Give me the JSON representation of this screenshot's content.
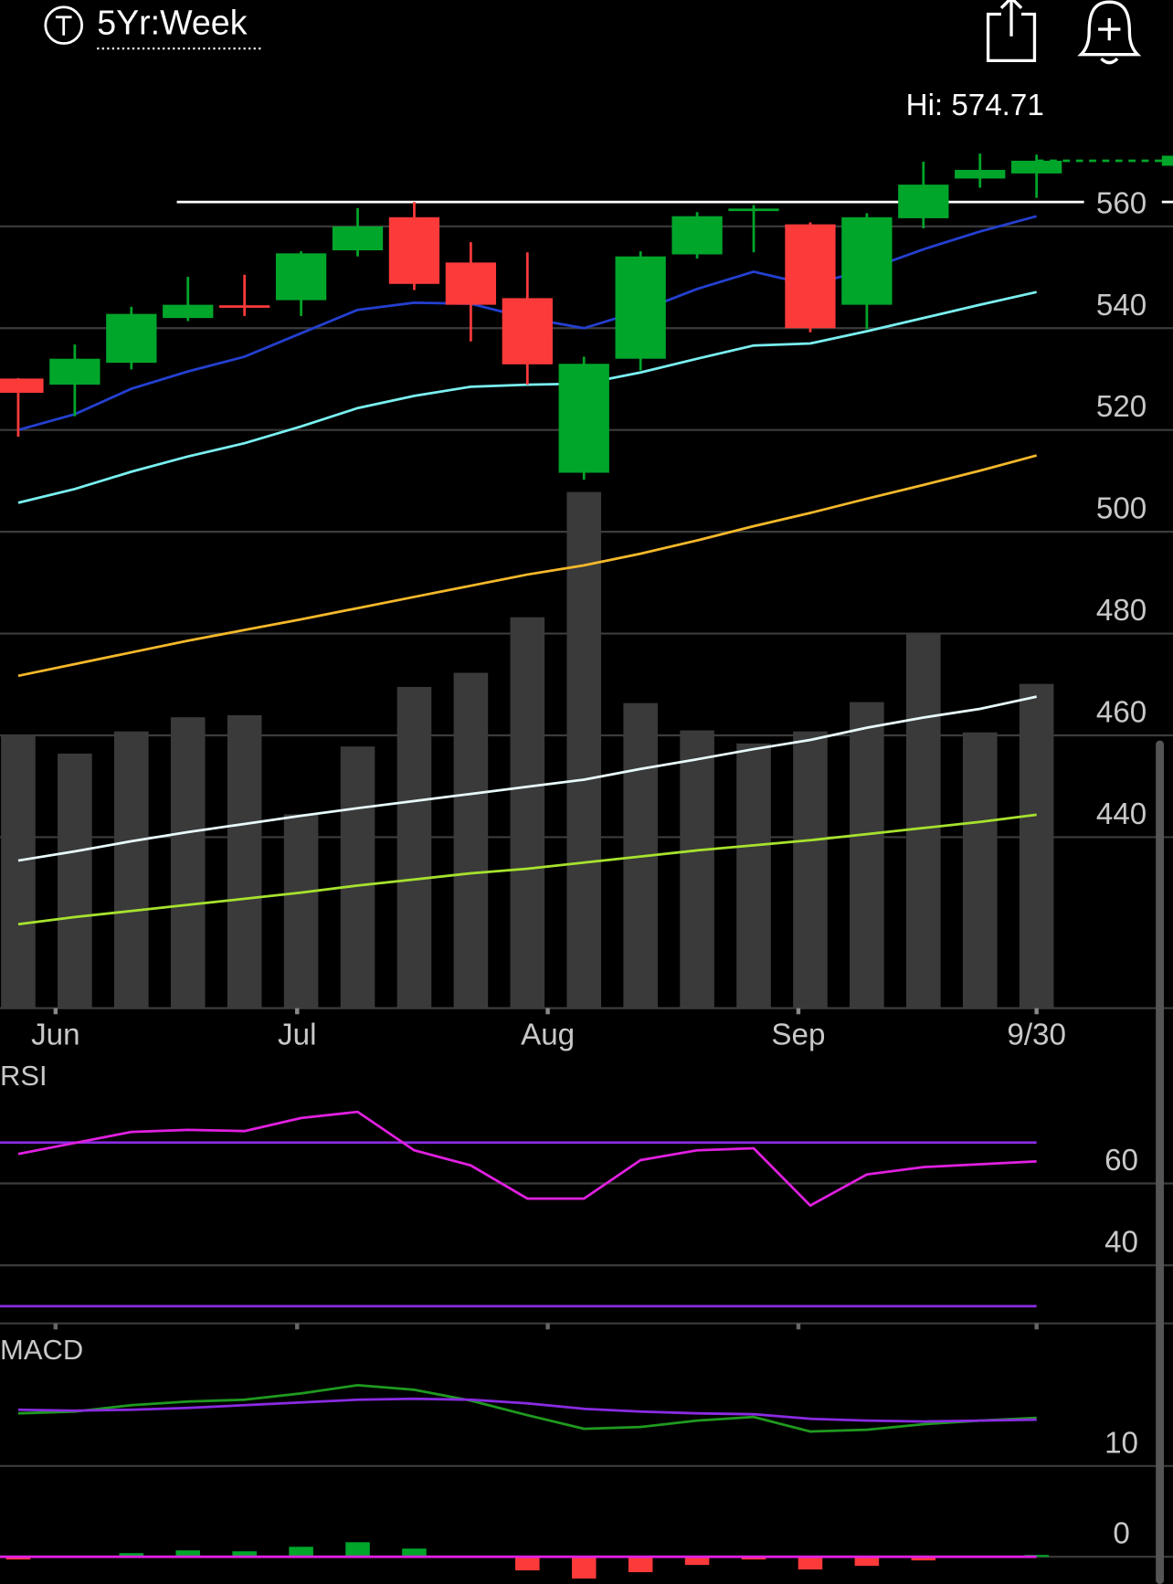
{
  "header": {
    "label": "5Yr:Week"
  },
  "chart_data": [
    {
      "type": "candlestick",
      "annotation": "Hi: 574.71",
      "categories": [
        null,
        null,
        null,
        null,
        null,
        null,
        null,
        null,
        null,
        null,
        null,
        null,
        null,
        null,
        null,
        null,
        null,
        null,
        null
      ],
      "open": [
        530.1,
        528.9,
        533.2,
        542.0,
        544.5,
        545.5,
        555.3,
        561.8,
        552.9,
        545.9,
        511.6,
        534.0,
        554.5,
        563.2,
        560.4,
        544.6,
        561.6,
        569.4,
        570.4
      ],
      "high": [
        530.2,
        536.8,
        544.2,
        550.1,
        550.5,
        555.1,
        563.6,
        564.8,
        556.9,
        554.9,
        534.4,
        555.1,
        562.8,
        564.2,
        560.8,
        562.6,
        572.7,
        574.3,
        574.1
      ],
      "low": [
        518.7,
        522.7,
        531.9,
        541.4,
        542.4,
        542.4,
        554.1,
        547.5,
        537.4,
        528.9,
        510.2,
        531.7,
        553.7,
        554.9,
        539.2,
        539.8,
        559.6,
        567.6,
        565.6
      ],
      "close": [
        527.3,
        534.0,
        542.8,
        544.6,
        544.3,
        554.7,
        560.0,
        548.7,
        544.6,
        532.9,
        533.0,
        554.1,
        562.0,
        563.5,
        540.0,
        561.8,
        568.2,
        571.1,
        572.9
      ],
      "up_color": "#00a62a",
      "down_color": "#fc3a3a",
      "series": [
        {
          "color": "#2440d0",
          "values": [
            520.0,
            523.1,
            528.1,
            531.5,
            534.4,
            539.0,
            543.6,
            545.0,
            544.8,
            542.0,
            540.0,
            543.4,
            547.7,
            551.1,
            548.5,
            551.5,
            555.5,
            559.0,
            562.0
          ]
        },
        {
          "color": "#7af0f0",
          "values": [
            505.7,
            508.4,
            511.8,
            514.8,
            517.4,
            520.7,
            524.3,
            526.7,
            528.5,
            528.9,
            529.1,
            531.3,
            534.0,
            536.6,
            537.0,
            539.4,
            542.0,
            544.6,
            547.1
          ]
        },
        {
          "color": "#f5b82a",
          "values": [
            471.7,
            474.0,
            476.3,
            478.6,
            480.7,
            482.8,
            485.0,
            487.2,
            489.4,
            491.6,
            493.4,
            495.7,
            498.3,
            501.1,
            503.7,
            506.5,
            509.2,
            512.0,
            515.0
          ]
        },
        {
          "color": "#e8fafa",
          "values": [
            435.4,
            437.2,
            439.2,
            441.0,
            442.6,
            444.2,
            445.7,
            447.1,
            448.5,
            449.9,
            451.3,
            453.4,
            455.3,
            457.3,
            459.1,
            461.5,
            463.5,
            465.2,
            467.6
          ]
        },
        {
          "color": "#a6e22e",
          "values": [
            422.9,
            424.3,
            425.5,
            426.7,
            427.9,
            429.1,
            430.5,
            431.7,
            432.9,
            433.8,
            435.0,
            436.2,
            437.4,
            438.4,
            439.4,
            440.6,
            441.8,
            443.0,
            444.4
          ]
        }
      ],
      "resistance": 564.8,
      "volume": {
        "color": "#3a3a3a",
        "lim": [
          0,
          918
        ],
        "values": [
          271,
          252,
          274,
          288,
          290,
          192,
          259,
          318,
          332,
          387,
          511,
          302,
          275,
          262,
          274,
          303,
          371,
          273,
          321
        ]
      },
      "ylim": [
        406.4,
        588.6
      ],
      "yticks": [
        440,
        460,
        480,
        500,
        520,
        540,
        560
      ],
      "xticks": [
        {
          "value": 0.66,
          "label": "Jun"
        },
        {
          "value": 4.93,
          "label": "Jul"
        },
        {
          "value": 9.36,
          "label": "Aug"
        },
        {
          "value": 13.79,
          "label": "Sep"
        },
        {
          "value": 18,
          "label": "9/30"
        }
      ],
      "grid": true
    },
    {
      "type": "line",
      "title": "RSI",
      "series": [
        {
          "color": "#e020e0",
          "values": [
            67.2,
            69.9,
            72.6,
            73.1,
            72.8,
            76.0,
            77.5,
            68.1,
            64.4,
            56.3,
            56.3,
            65.7,
            68.1,
            68.6,
            54.6,
            62.2,
            64.0,
            64.7,
            65.4
          ]
        }
      ],
      "levels": [
        70,
        30
      ],
      "level_color": "#8a2be2",
      "ylim": [
        25.8,
        90
      ],
      "yticks": [
        40,
        60
      ],
      "grid": true
    },
    {
      "type": "macd",
      "title": "MACD",
      "series": [
        {
          "color": "#1f9a1f",
          "values": [
            15.8,
            16.0,
            16.7,
            17.1,
            17.3,
            18.0,
            18.9,
            18.4,
            17.2,
            15.6,
            14.1,
            14.3,
            15.0,
            15.4,
            13.8,
            14.0,
            14.6,
            15.0,
            15.3
          ]
        },
        {
          "color": "#8a2be2",
          "values": [
            16.2,
            16.1,
            16.2,
            16.4,
            16.7,
            17.0,
            17.3,
            17.4,
            17.3,
            16.9,
            16.3,
            16.0,
            15.8,
            15.7,
            15.2,
            15.0,
            14.9,
            15.0,
            15.1
          ]
        }
      ],
      "histogram": {
        "up_color": "#00a62a",
        "down_color": "#fc3a3a",
        "values": [
          -0.3,
          0,
          0.4,
          0.7,
          0.6,
          1.1,
          1.6,
          0.9,
          0,
          -1.5,
          -2.4,
          -1.7,
          -0.9,
          -0.3,
          -1.4,
          -1.0,
          -0.4,
          0,
          0.2
        ]
      },
      "zero_color": "#e020e0",
      "ylim": [
        -3,
        24.6
      ],
      "yticks": [
        0,
        10
      ],
      "grid": true
    }
  ]
}
